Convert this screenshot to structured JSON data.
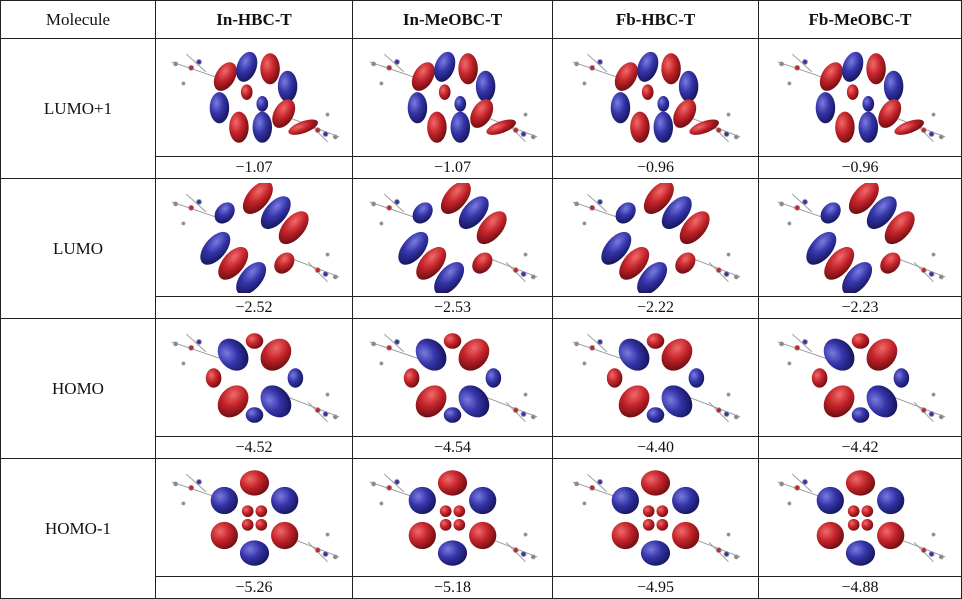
{
  "table": {
    "columns": [
      "Molecule",
      "In-HBC-T",
      "In-MeOBC-T",
      "Fb-HBC-T",
      "Fb-MeOBC-T"
    ],
    "rows": [
      {
        "label": "LUMO+1",
        "values": [
          "−1.07",
          "−1.07",
          "−0.96",
          "−0.96"
        ]
      },
      {
        "label": "LUMO",
        "values": [
          "−2.52",
          "−2.53",
          "−2.22",
          "−2.23"
        ]
      },
      {
        "label": "HOMO",
        "values": [
          "−4.52",
          "−4.54",
          "−4.40",
          "−4.42"
        ]
      },
      {
        "label": "HOMO-1",
        "values": [
          "−5.26",
          "−5.18",
          "−4.95",
          "−4.88"
        ]
      }
    ]
  }
}
